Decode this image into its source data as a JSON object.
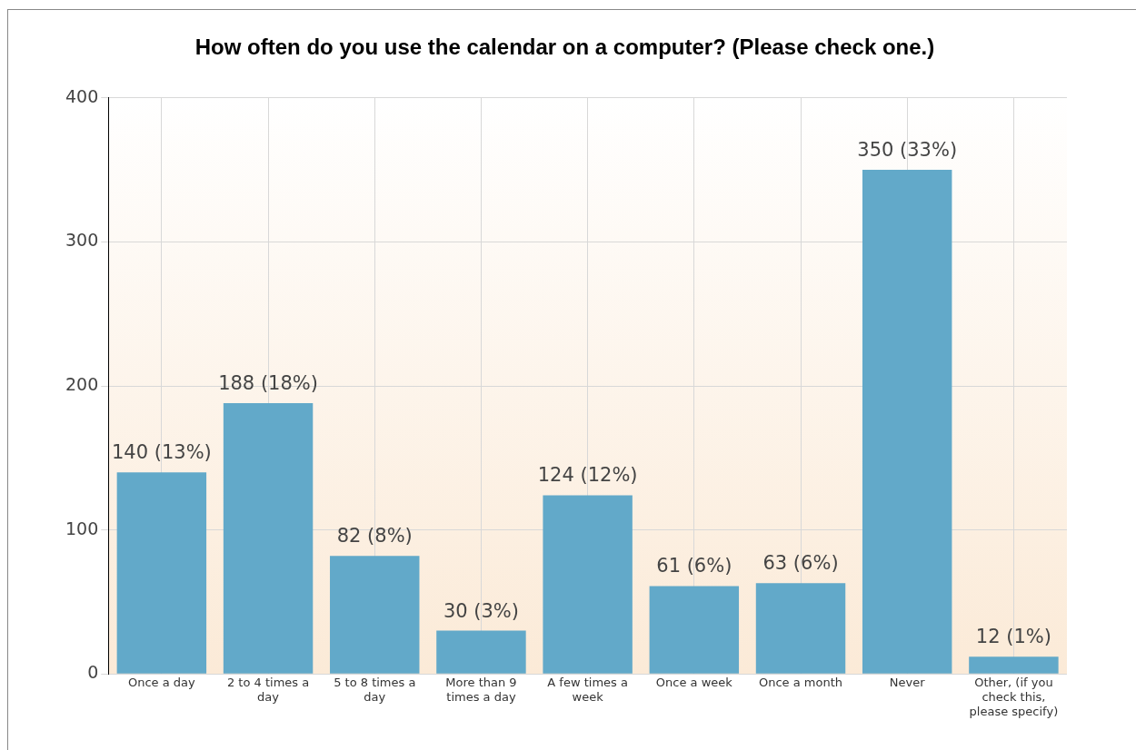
{
  "chart_data": {
    "type": "bar",
    "title": "How often do you use the calendar on a computer? (Please check one.)",
    "categories": [
      "Once a day",
      "2 to 4 times a day",
      "5 to 8 times a day",
      "More than 9 times a day",
      "A few times a week",
      "Once a week",
      "Once a month",
      "Never",
      "Other, (if you check this, please specify)"
    ],
    "values": [
      140,
      188,
      82,
      30,
      124,
      61,
      63,
      350,
      12
    ],
    "value_labels": [
      "140 (13%)",
      "188 (18%)",
      "82 (8%)",
      "30 (3%)",
      "124 (12%)",
      "61 (6%)",
      "63 (6%)",
      "350 (33%)",
      "12 (1%)"
    ],
    "color": "#62a9c9",
    "ylim": [
      0,
      400
    ],
    "yticks": [
      0,
      100,
      200,
      300,
      400
    ],
    "grid": true,
    "legend": false
  }
}
